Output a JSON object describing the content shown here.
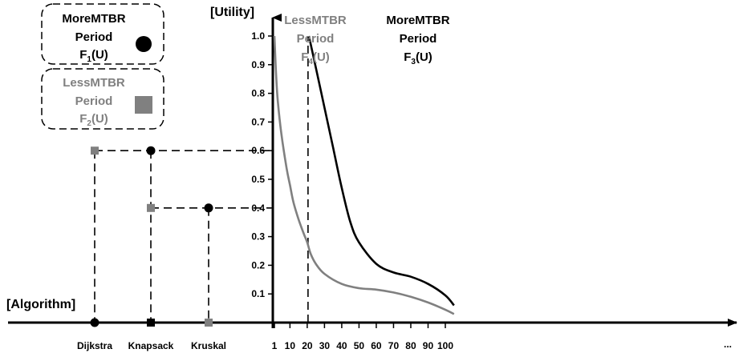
{
  "chart_data": {
    "type": "line",
    "y_title": "[Utility]",
    "x_title": "[Algorithm]",
    "y_ticks": [
      "1.0",
      "0.9",
      "0.8",
      "0.7",
      "0.6",
      "0.5",
      "0.4",
      "0.3",
      "0.2",
      "0.1"
    ],
    "x_ticks": [
      "1",
      "10",
      "20",
      "30",
      "40",
      "50",
      "60",
      "70",
      "80",
      "90",
      "100"
    ],
    "x_extra": "...",
    "algorithms": [
      "Dijkstra",
      "Knapsack",
      "Kruskal"
    ],
    "ylim": [
      0,
      1.0
    ],
    "xlim": [
      1,
      105
    ],
    "series": [
      {
        "key": "F3",
        "color": "#000000",
        "x": [
          21,
          25,
          30,
          35,
          40,
          45,
          50,
          60,
          70,
          80,
          90,
          100,
          105
        ],
        "y": [
          1.0,
          0.89,
          0.75,
          0.61,
          0.47,
          0.35,
          0.28,
          0.205,
          0.175,
          0.16,
          0.135,
          0.095,
          0.06
        ]
      },
      {
        "key": "F4",
        "color": "#808080",
        "x": [
          1,
          2,
          3,
          5,
          8,
          10,
          12,
          15,
          18,
          20,
          22,
          25,
          30,
          40,
          50,
          60,
          70,
          80,
          90,
          100,
          105
        ],
        "y": [
          1.0,
          0.86,
          0.77,
          0.66,
          0.54,
          0.48,
          0.42,
          0.36,
          0.31,
          0.28,
          0.24,
          0.205,
          0.17,
          0.135,
          0.12,
          0.115,
          0.105,
          0.09,
          0.07,
          0.045,
          0.03
        ]
      }
    ],
    "points": [
      {
        "algorithm": "Dijkstra",
        "utility": 0.6,
        "series": "F2"
      },
      {
        "algorithm": "Knapsack",
        "utility": 0.6,
        "series": "F1"
      },
      {
        "algorithm": "Knapsack",
        "utility": 0.4,
        "series": "F2"
      },
      {
        "algorithm": "Kruskal",
        "utility": 0.4,
        "series": "F1"
      }
    ],
    "vline_x": 20,
    "curve_labels": {
      "F4": {
        "line1": "LessMTBR",
        "line2": "Period",
        "f": "F",
        "sub": "4",
        "u": "(U)",
        "color": "#808080"
      },
      "F3": {
        "line1": "MoreMTBR",
        "line2": "Period",
        "f": "F",
        "sub": "3",
        "u": "(U)",
        "color": "#000000"
      }
    },
    "legend": [
      {
        "key": "F1",
        "line1": "MoreMTBR",
        "line2": "Period",
        "f": "F",
        "sub": "1",
        "u": "(U)",
        "color": "#000000",
        "marker": "circle"
      },
      {
        "key": "F2",
        "line1": "LessMTBR",
        "line2": "Period",
        "f": "F",
        "sub": "2",
        "u": "(U)",
        "color": "#808080",
        "marker": "square"
      }
    ]
  }
}
